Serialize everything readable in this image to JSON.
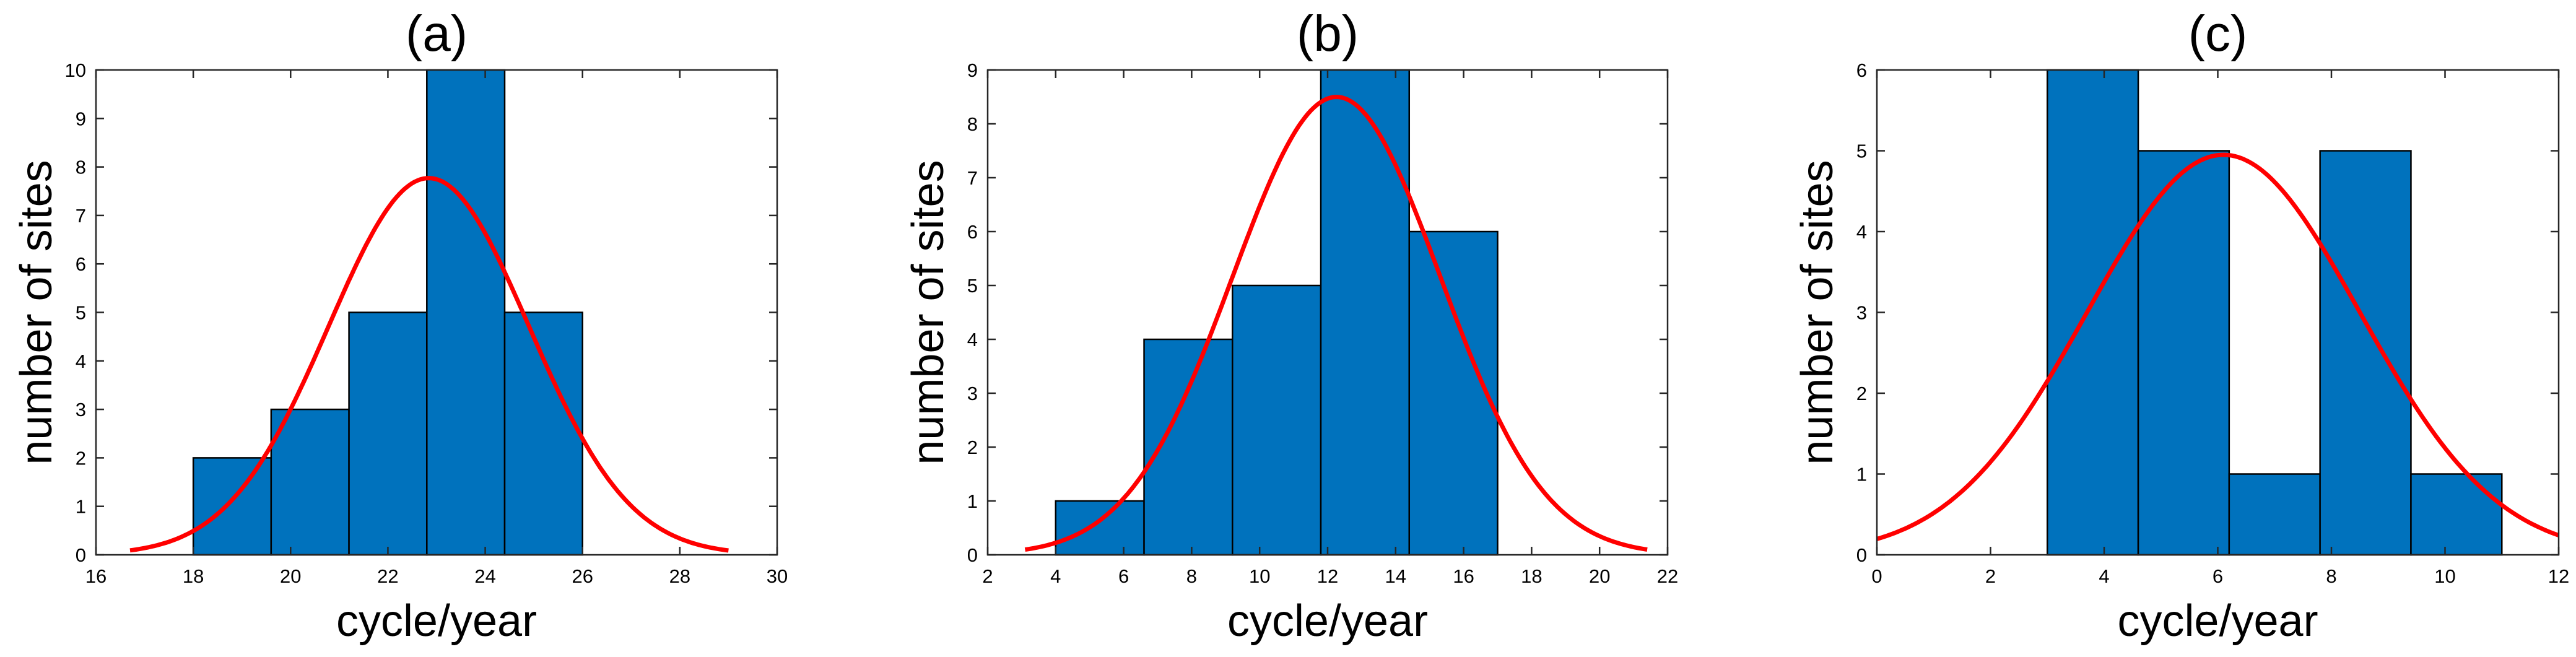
{
  "chart_data": [
    {
      "type": "bar",
      "title": "(a)",
      "xlabel": "cycle/year",
      "ylabel": "number of sites",
      "xlim": [
        16,
        30
      ],
      "ylim": [
        0,
        10
      ],
      "xticks": [
        16,
        18,
        20,
        22,
        24,
        26,
        28,
        30
      ],
      "yticks": [
        0,
        1,
        2,
        3,
        4,
        5,
        6,
        7,
        8,
        9,
        10
      ],
      "bins": [
        {
          "from": 18.0,
          "to": 19.6,
          "count": 2
        },
        {
          "from": 19.6,
          "to": 21.2,
          "count": 3
        },
        {
          "from": 21.2,
          "to": 22.8,
          "count": 5
        },
        {
          "from": 22.8,
          "to": 24.4,
          "count": 10
        },
        {
          "from": 24.4,
          "to": 26.0,
          "count": 5
        }
      ],
      "fit": {
        "type": "normal",
        "mean": 22.84,
        "std": 2.06,
        "peak": 7.77,
        "x_range": [
          16.7,
          29.0
        ]
      },
      "bar_color": "#0072BD",
      "line_color": "#FF0000"
    },
    {
      "type": "bar",
      "title": "(b)",
      "xlabel": "cycle/year",
      "ylabel": "number of sites",
      "xlim": [
        2,
        22
      ],
      "ylim": [
        0,
        9
      ],
      "xticks": [
        2,
        4,
        6,
        8,
        10,
        12,
        14,
        16,
        18,
        20,
        22
      ],
      "yticks": [
        0,
        1,
        2,
        3,
        4,
        5,
        6,
        7,
        8,
        9
      ],
      "bins": [
        {
          "from": 4.0,
          "to": 6.6,
          "count": 1
        },
        {
          "from": 6.6,
          "to": 9.2,
          "count": 4
        },
        {
          "from": 9.2,
          "to": 11.8,
          "count": 5
        },
        {
          "from": 11.8,
          "to": 14.4,
          "count": 9
        },
        {
          "from": 14.4,
          "to": 17.0,
          "count": 6
        }
      ],
      "fit": {
        "type": "normal",
        "mean": 12.26,
        "std": 3.06,
        "peak": 8.5,
        "x_range": [
          3.1,
          21.4
        ]
      },
      "bar_color": "#0072BD",
      "line_color": "#FF0000"
    },
    {
      "type": "bar",
      "title": "(c)",
      "xlabel": "cycle/year",
      "ylabel": "number of sites",
      "xlim": [
        0,
        12
      ],
      "ylim": [
        0,
        6
      ],
      "xticks": [
        0,
        2,
        4,
        6,
        8,
        10,
        12
      ],
      "yticks": [
        0,
        1,
        2,
        3,
        4,
        5,
        6
      ],
      "bins": [
        {
          "from": 3.0,
          "to": 4.6,
          "count": 6
        },
        {
          "from": 4.6,
          "to": 6.2,
          "count": 5
        },
        {
          "from": 6.2,
          "to": 7.8,
          "count": 1
        },
        {
          "from": 7.8,
          "to": 9.4,
          "count": 5
        },
        {
          "from": 9.4,
          "to": 11.0,
          "count": 1
        }
      ],
      "fit": {
        "type": "normal",
        "mean": 6.1,
        "std": 2.4,
        "peak": 4.95,
        "x_range": [
          0.0,
          12.0
        ]
      },
      "bar_color": "#0072BD",
      "line_color": "#FF0000"
    }
  ]
}
